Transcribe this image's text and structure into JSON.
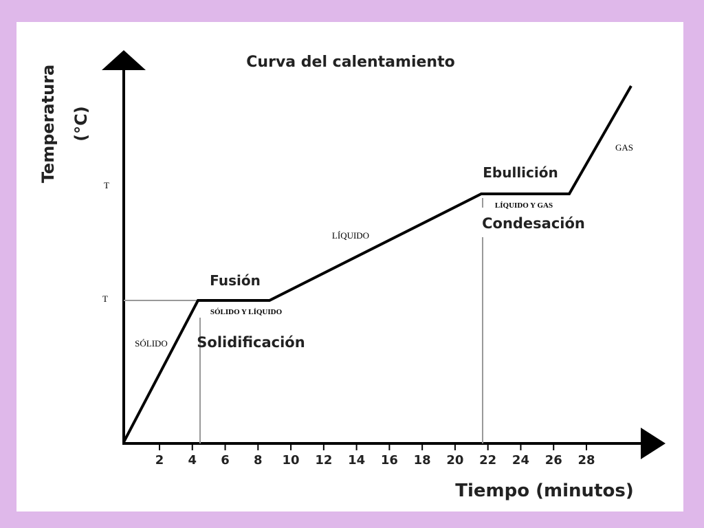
{
  "title": "Curva del calentamiento",
  "y_axis_label": [
    "Temperatura",
    "(°C)"
  ],
  "x_axis_label": "Tiempo (minutos)",
  "x_ticks": [
    "2",
    "4",
    "6",
    "8",
    "10",
    "12",
    "14",
    "16",
    "18",
    "20",
    "22",
    "24",
    "26",
    "28"
  ],
  "y_marks": [
    "T",
    "T"
  ],
  "phase_labels": [
    "SÓLIDO",
    "SÓLIDO Y LÍQUIDO",
    "LÍQUIDO",
    "LÍQUIDO Y GAS",
    "GAS"
  ],
  "transition_labels": [
    "Fusión",
    "Solidificación",
    "Ebullición",
    "Condesación"
  ]
}
